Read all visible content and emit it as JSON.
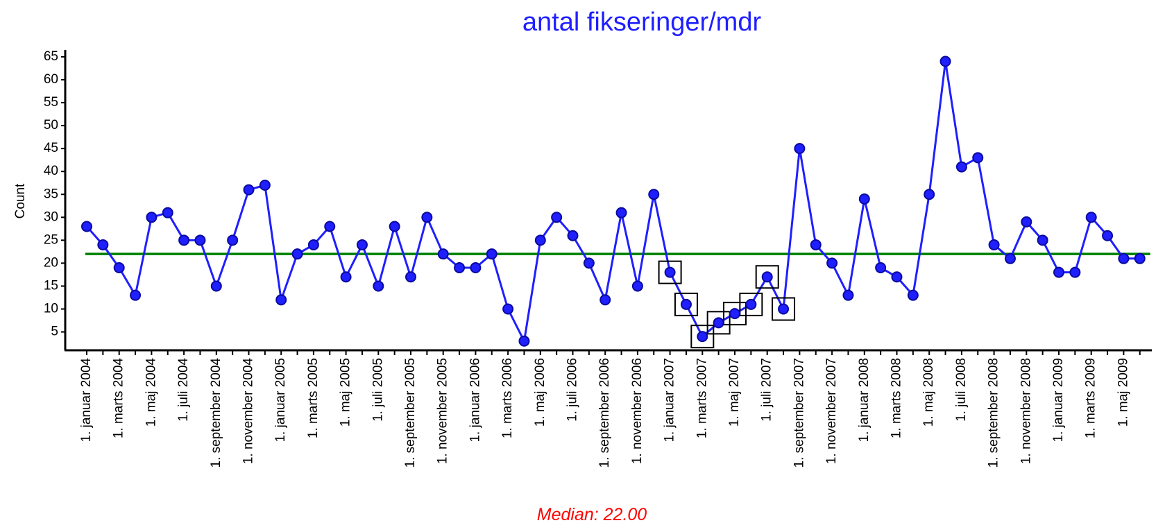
{
  "chart_data": {
    "type": "line",
    "title": "antal fikseringer/mdr",
    "y_label": "Count",
    "categories": [
      "1. januar 2004",
      null,
      "1. marts 2004",
      null,
      "1. maj 2004",
      null,
      "1. juli 2004",
      null,
      "1. september 2004",
      null,
      "1. november 2004",
      null,
      "1. januar 2005",
      null,
      "1. marts 2005",
      null,
      "1. maj 2005",
      null,
      "1. juli 2005",
      null,
      "1. september 2005",
      null,
      "1. november 2005",
      null,
      "1. januar 2006",
      null,
      "1. marts 2006",
      null,
      "1. maj 2006",
      null,
      "1. juli 2006",
      null,
      "1. september 2006",
      null,
      "1. november 2006",
      null,
      "1. januar 2007",
      null,
      "1. marts 2007",
      null,
      "1. maj 2007",
      null,
      "1. juli 2007",
      null,
      "1. september 2007",
      null,
      "1. november 2007",
      null,
      "1. januar 2008",
      null,
      "1. marts 2008",
      null,
      "1. maj 2008",
      null,
      "1. juli 2008",
      null,
      "1. september 2008",
      null,
      "1. november 2008",
      null,
      "1. januar 2009",
      null,
      "1. marts 2009",
      null,
      "1. maj 2009",
      null
    ],
    "series": [
      {
        "name": "Count",
        "color": "#1f1fff",
        "marker_color": "#0a0a9e",
        "values": [
          28,
          24,
          19,
          13,
          30,
          31,
          25,
          25,
          15,
          25,
          36,
          37,
          12,
          22,
          24,
          28,
          17,
          24,
          15,
          28,
          17,
          30,
          22,
          19,
          19,
          22,
          10,
          3,
          25,
          30,
          26,
          20,
          12,
          31,
          15,
          35,
          18,
          11,
          4,
          7,
          9,
          11,
          17,
          10,
          45,
          24,
          20,
          13,
          34,
          19,
          17,
          13,
          35,
          64,
          41,
          43,
          24,
          21,
          29,
          25,
          18,
          18,
          30,
          26,
          21,
          21
        ]
      }
    ],
    "signal_indices": [
      36,
      37,
      38,
      39,
      40,
      41,
      42,
      43
    ],
    "median": {
      "value": 22,
      "label": "Median: 22.00",
      "color": "#008000",
      "label_color": "#ff0000"
    },
    "ylim": [
      1,
      66.5
    ],
    "yticks": [
      5,
      10,
      15,
      20,
      25,
      30,
      35,
      40,
      45,
      50,
      55,
      60,
      65
    ]
  }
}
